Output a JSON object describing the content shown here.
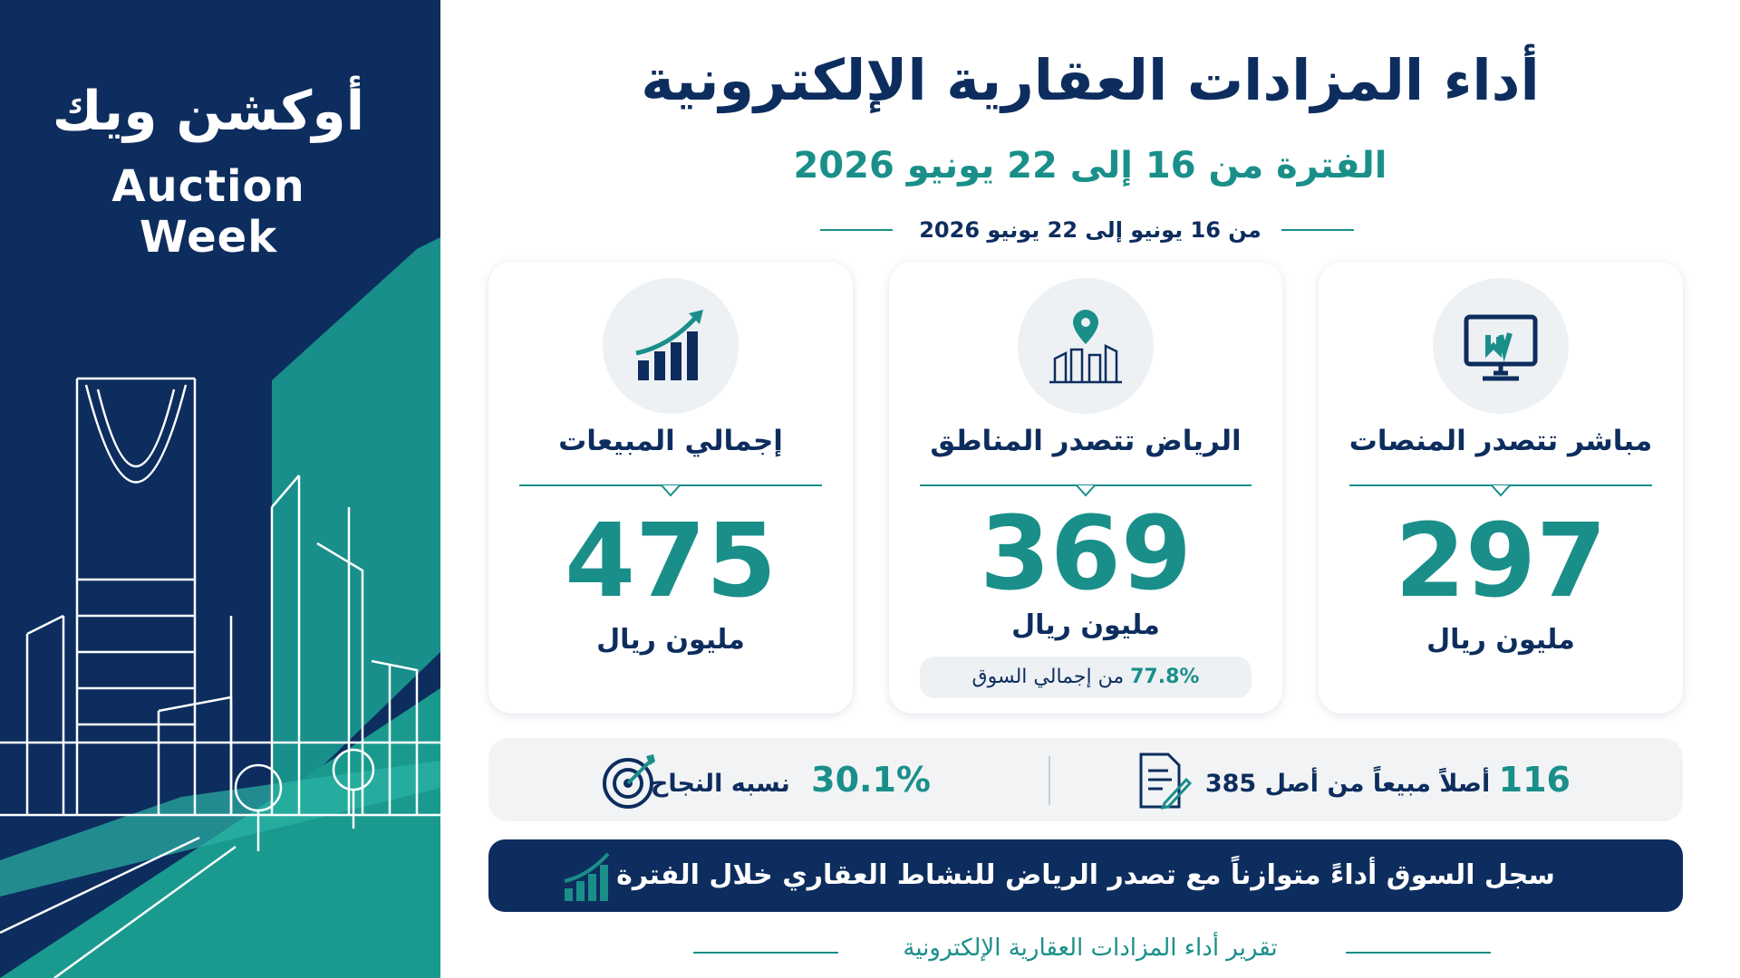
{
  "logo": {
    "arabic": "أوكشن ويك",
    "english": "Auction Week"
  },
  "header": {
    "title": "أداء المزادات العقارية الإلكترونية",
    "subtitle": "الفترة من 16 إلى 22 يونيو 2026",
    "date": "من 16 يونيو إلى 22 يونيو 2026"
  },
  "cards": [
    {
      "title": "مباشر تتصدر المنصات",
      "value": "297",
      "unit": "مليون ريال"
    },
    {
      "title": "الرياض تتصدر المناطق",
      "value": "369",
      "unit": "مليون ريال",
      "note_value": "77.8%",
      "note": "من إجمالي السوق"
    },
    {
      "title": "إجمالي المبيعات",
      "value": "475",
      "unit": "مليون ريال"
    }
  ],
  "stats": [
    {
      "value": "116",
      "text": "أصلاً مبيعاً من أصل 385"
    },
    {
      "value": "30.1%",
      "text": "نسبه النجاح"
    }
  ],
  "banner": "سجل السوق أداءً متوازناً مع تصدر الرياض للنشاط العقاري خلال الفترة",
  "footer": "تقرير أداء المزادات العقارية الإلكترونية"
}
